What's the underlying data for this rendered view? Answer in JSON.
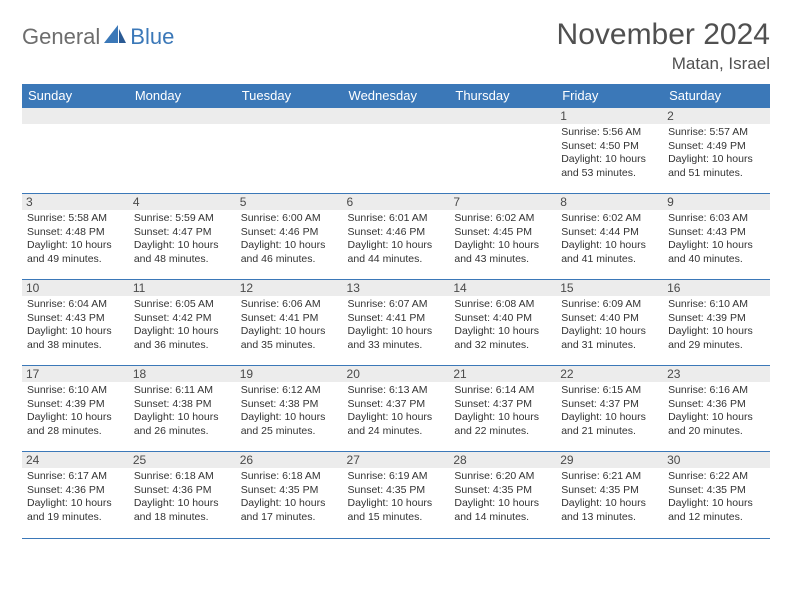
{
  "logo": {
    "text1": "General",
    "text2": "Blue"
  },
  "title": "November 2024",
  "location": "Matan, Israel",
  "colors": {
    "accent": "#3b78b8",
    "header_text": "#ffffff",
    "daynum_bg": "#ececec",
    "text": "#333333",
    "title_text": "#505050",
    "logo_gray": "#6d6d6d"
  },
  "typography": {
    "title_fontsize": 30,
    "location_fontsize": 17,
    "dayheader_fontsize": 13,
    "daynum_fontsize": 12,
    "body_fontsize": 10.5
  },
  "day_headers": [
    "Sunday",
    "Monday",
    "Tuesday",
    "Wednesday",
    "Thursday",
    "Friday",
    "Saturday"
  ],
  "weeks": [
    [
      null,
      null,
      null,
      null,
      null,
      {
        "n": "1",
        "sunrise": "Sunrise: 5:56 AM",
        "sunset": "Sunset: 4:50 PM",
        "daylight": "Daylight: 10 hours and 53 minutes."
      },
      {
        "n": "2",
        "sunrise": "Sunrise: 5:57 AM",
        "sunset": "Sunset: 4:49 PM",
        "daylight": "Daylight: 10 hours and 51 minutes."
      }
    ],
    [
      {
        "n": "3",
        "sunrise": "Sunrise: 5:58 AM",
        "sunset": "Sunset: 4:48 PM",
        "daylight": "Daylight: 10 hours and 49 minutes."
      },
      {
        "n": "4",
        "sunrise": "Sunrise: 5:59 AM",
        "sunset": "Sunset: 4:47 PM",
        "daylight": "Daylight: 10 hours and 48 minutes."
      },
      {
        "n": "5",
        "sunrise": "Sunrise: 6:00 AM",
        "sunset": "Sunset: 4:46 PM",
        "daylight": "Daylight: 10 hours and 46 minutes."
      },
      {
        "n": "6",
        "sunrise": "Sunrise: 6:01 AM",
        "sunset": "Sunset: 4:46 PM",
        "daylight": "Daylight: 10 hours and 44 minutes."
      },
      {
        "n": "7",
        "sunrise": "Sunrise: 6:02 AM",
        "sunset": "Sunset: 4:45 PM",
        "daylight": "Daylight: 10 hours and 43 minutes."
      },
      {
        "n": "8",
        "sunrise": "Sunrise: 6:02 AM",
        "sunset": "Sunset: 4:44 PM",
        "daylight": "Daylight: 10 hours and 41 minutes."
      },
      {
        "n": "9",
        "sunrise": "Sunrise: 6:03 AM",
        "sunset": "Sunset: 4:43 PM",
        "daylight": "Daylight: 10 hours and 40 minutes."
      }
    ],
    [
      {
        "n": "10",
        "sunrise": "Sunrise: 6:04 AM",
        "sunset": "Sunset: 4:43 PM",
        "daylight": "Daylight: 10 hours and 38 minutes."
      },
      {
        "n": "11",
        "sunrise": "Sunrise: 6:05 AM",
        "sunset": "Sunset: 4:42 PM",
        "daylight": "Daylight: 10 hours and 36 minutes."
      },
      {
        "n": "12",
        "sunrise": "Sunrise: 6:06 AM",
        "sunset": "Sunset: 4:41 PM",
        "daylight": "Daylight: 10 hours and 35 minutes."
      },
      {
        "n": "13",
        "sunrise": "Sunrise: 6:07 AM",
        "sunset": "Sunset: 4:41 PM",
        "daylight": "Daylight: 10 hours and 33 minutes."
      },
      {
        "n": "14",
        "sunrise": "Sunrise: 6:08 AM",
        "sunset": "Sunset: 4:40 PM",
        "daylight": "Daylight: 10 hours and 32 minutes."
      },
      {
        "n": "15",
        "sunrise": "Sunrise: 6:09 AM",
        "sunset": "Sunset: 4:40 PM",
        "daylight": "Daylight: 10 hours and 31 minutes."
      },
      {
        "n": "16",
        "sunrise": "Sunrise: 6:10 AM",
        "sunset": "Sunset: 4:39 PM",
        "daylight": "Daylight: 10 hours and 29 minutes."
      }
    ],
    [
      {
        "n": "17",
        "sunrise": "Sunrise: 6:10 AM",
        "sunset": "Sunset: 4:39 PM",
        "daylight": "Daylight: 10 hours and 28 minutes."
      },
      {
        "n": "18",
        "sunrise": "Sunrise: 6:11 AM",
        "sunset": "Sunset: 4:38 PM",
        "daylight": "Daylight: 10 hours and 26 minutes."
      },
      {
        "n": "19",
        "sunrise": "Sunrise: 6:12 AM",
        "sunset": "Sunset: 4:38 PM",
        "daylight": "Daylight: 10 hours and 25 minutes."
      },
      {
        "n": "20",
        "sunrise": "Sunrise: 6:13 AM",
        "sunset": "Sunset: 4:37 PM",
        "daylight": "Daylight: 10 hours and 24 minutes."
      },
      {
        "n": "21",
        "sunrise": "Sunrise: 6:14 AM",
        "sunset": "Sunset: 4:37 PM",
        "daylight": "Daylight: 10 hours and 22 minutes."
      },
      {
        "n": "22",
        "sunrise": "Sunrise: 6:15 AM",
        "sunset": "Sunset: 4:37 PM",
        "daylight": "Daylight: 10 hours and 21 minutes."
      },
      {
        "n": "23",
        "sunrise": "Sunrise: 6:16 AM",
        "sunset": "Sunset: 4:36 PM",
        "daylight": "Daylight: 10 hours and 20 minutes."
      }
    ],
    [
      {
        "n": "24",
        "sunrise": "Sunrise: 6:17 AM",
        "sunset": "Sunset: 4:36 PM",
        "daylight": "Daylight: 10 hours and 19 minutes."
      },
      {
        "n": "25",
        "sunrise": "Sunrise: 6:18 AM",
        "sunset": "Sunset: 4:36 PM",
        "daylight": "Daylight: 10 hours and 18 minutes."
      },
      {
        "n": "26",
        "sunrise": "Sunrise: 6:18 AM",
        "sunset": "Sunset: 4:35 PM",
        "daylight": "Daylight: 10 hours and 17 minutes."
      },
      {
        "n": "27",
        "sunrise": "Sunrise: 6:19 AM",
        "sunset": "Sunset: 4:35 PM",
        "daylight": "Daylight: 10 hours and 15 minutes."
      },
      {
        "n": "28",
        "sunrise": "Sunrise: 6:20 AM",
        "sunset": "Sunset: 4:35 PM",
        "daylight": "Daylight: 10 hours and 14 minutes."
      },
      {
        "n": "29",
        "sunrise": "Sunrise: 6:21 AM",
        "sunset": "Sunset: 4:35 PM",
        "daylight": "Daylight: 10 hours and 13 minutes."
      },
      {
        "n": "30",
        "sunrise": "Sunrise: 6:22 AM",
        "sunset": "Sunset: 4:35 PM",
        "daylight": "Daylight: 10 hours and 12 minutes."
      }
    ]
  ]
}
